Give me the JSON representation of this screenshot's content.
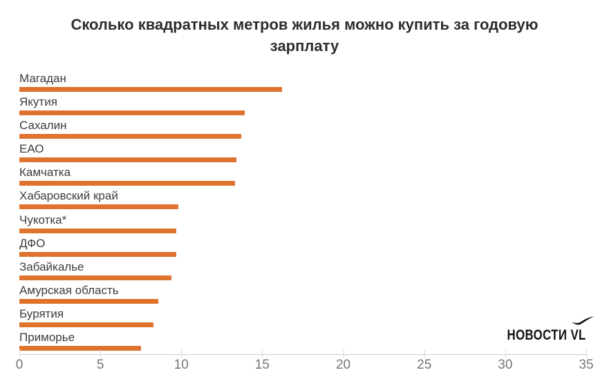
{
  "title_lines": [
    "Сколько квадратных метров жилья можно купить за годовую",
    "зарплату"
  ],
  "logo": {
    "text": "НОВОСТИ VL",
    "icon": "seagull-icon"
  },
  "colors": {
    "bar": "#df722d",
    "title_text": "#2d2d2d",
    "label_text": "#3c3c3c",
    "axis_text": "#757575",
    "axis_line": "#cccccc",
    "logo_text": "#111111"
  },
  "chart_data": {
    "type": "bar",
    "orientation": "horizontal",
    "title": "Сколько квадратных метров жилья можно купить за годовую зарплату",
    "categories": [
      "Магадан",
      "Якутия",
      "Сахалин",
      "ЕАО",
      "Камчатка",
      "Хабаровский край",
      "Чукотка*",
      "ДФО",
      "Забайкалье",
      "Амурская область",
      "Бурятия",
      "Приморье"
    ],
    "values": [
      16.2,
      13.9,
      13.7,
      13.4,
      13.3,
      9.8,
      9.7,
      9.7,
      9.4,
      8.6,
      8.3,
      7.5
    ],
    "xlabel": "",
    "ylabel": "",
    "xlim": [
      0,
      35
    ],
    "x_ticks": [
      0,
      5,
      10,
      15,
      20,
      25,
      30,
      35
    ],
    "grid": false,
    "legend": false,
    "value_labels": false
  }
}
